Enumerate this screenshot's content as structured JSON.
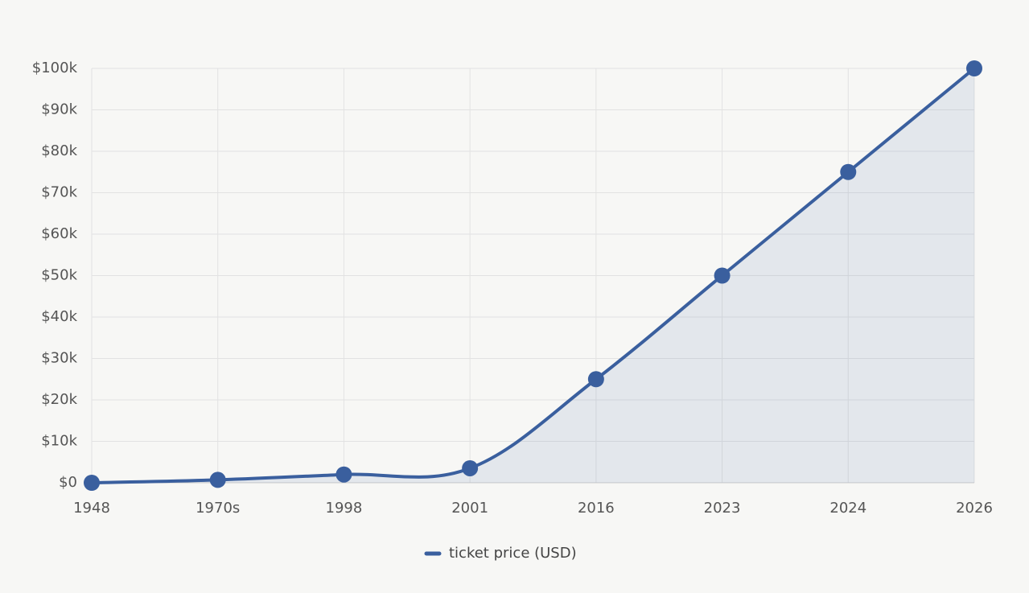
{
  "chart_data": {
    "type": "line",
    "categories": [
      "1948",
      "1970s",
      "1998",
      "2001",
      "2016",
      "2023",
      "2024",
      "2026"
    ],
    "series": [
      {
        "name": "ticket price (USD)",
        "color": "#3a5f9e",
        "values": [
          0,
          700,
          2000,
          3500,
          25000,
          50000,
          75000,
          100000
        ]
      }
    ],
    "ylim": [
      0,
      100000
    ],
    "yticks": [
      {
        "value": 0,
        "label": "$0"
      },
      {
        "value": 10000,
        "label": "$10k"
      },
      {
        "value": 20000,
        "label": "$20k"
      },
      {
        "value": 30000,
        "label": "$30k"
      },
      {
        "value": 40000,
        "label": "$40k"
      },
      {
        "value": 50000,
        "label": "$50k"
      },
      {
        "value": 60000,
        "label": "$60k"
      },
      {
        "value": 70000,
        "label": "$70k"
      },
      {
        "value": 80000,
        "label": "$80k"
      },
      {
        "value": 90000,
        "label": "$90k"
      },
      {
        "value": 100000,
        "label": "$100k"
      }
    ],
    "grid": true,
    "area": true,
    "legend": "bottom"
  }
}
